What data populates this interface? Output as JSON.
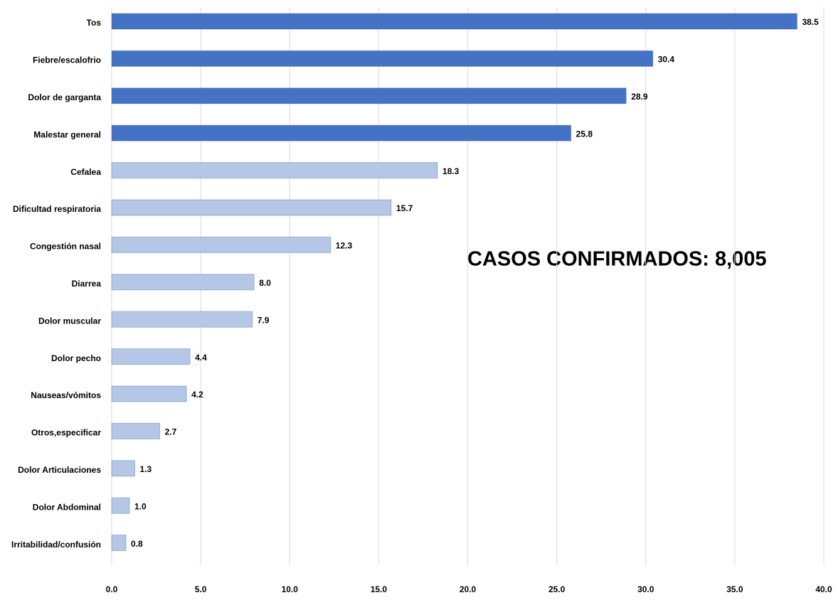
{
  "chart_data": {
    "type": "hbar",
    "annotation": "CASOS CONFIRMADOS: 8,005",
    "categories": [
      "Tos",
      "Fiebre/escalofrio",
      "Dolor de garganta",
      "Malestar general",
      "Cefalea",
      "Dificultad respiratoria",
      "Congestión nasal",
      "Diarrea",
      "Dolor muscular",
      "Dolor pecho",
      "Nauseas/vómitos",
      "Otros,especificar",
      "Dolor Articulaciones",
      "Dolor Abdominal",
      "Irritabilidad/confusión"
    ],
    "values": [
      38.5,
      30.4,
      28.9,
      25.8,
      18.3,
      15.7,
      12.3,
      8.0,
      7.9,
      4.4,
      4.2,
      2.7,
      1.3,
      1.0,
      0.8
    ],
    "value_labels": [
      "38.5",
      "30.4",
      "28.9",
      "25.8",
      "18.3",
      "15.7",
      "12.3",
      "8.0",
      "7.9",
      "4.4",
      "4.2",
      "2.7",
      "1.3",
      "1.0",
      "0.8"
    ],
    "colors": [
      "#4472c4",
      "#4472c4",
      "#4472c4",
      "#4472c4",
      "#b4c7e7",
      "#b4c7e7",
      "#b4c7e7",
      "#b4c7e7",
      "#b4c7e7",
      "#b4c7e7",
      "#b4c7e7",
      "#b4c7e7",
      "#b4c7e7",
      "#b4c7e7",
      "#b4c7e7"
    ],
    "xlim": [
      0,
      40
    ],
    "xticks": [
      {
        "value": 0,
        "label": "0.0"
      },
      {
        "value": 5,
        "label": "5.0"
      },
      {
        "value": 10,
        "label": "10.0"
      },
      {
        "value": 15,
        "label": "15.0"
      },
      {
        "value": 20,
        "label": "20.0"
      },
      {
        "value": 25,
        "label": "25.0"
      },
      {
        "value": 30,
        "label": "30.0"
      },
      {
        "value": 35,
        "label": "35.0"
      },
      {
        "value": 40,
        "label": "40.0"
      }
    ],
    "grid": true
  }
}
